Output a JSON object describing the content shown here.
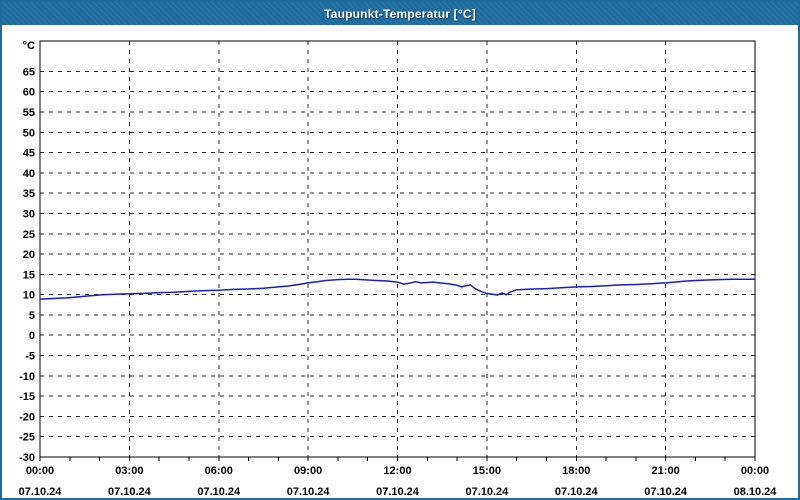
{
  "window": {
    "title": "Taupunkt-Temperatur [°C]"
  },
  "colors": {
    "titlebar": "#1E6C9F",
    "frame_border": "#1E6C9F",
    "line": "#1A1ACD",
    "grid": "#2A2A2A",
    "axis": "#000000",
    "plot_background": "#FFFFFF",
    "label_text": "#000000",
    "title_text": "#FFFFFF"
  },
  "chart_data": {
    "type": "line",
    "title": "Taupunkt-Temperatur [°C]",
    "ylabel": "°C",
    "xlabel": "",
    "grid": true,
    "legend": "none",
    "ylim": [
      -30,
      72.5
    ],
    "xlim_hours": [
      0,
      24
    ],
    "y_ticks": [
      65,
      60,
      55,
      50,
      45,
      40,
      35,
      30,
      25,
      20,
      15,
      10,
      5,
      0,
      -5,
      -10,
      -15,
      -20,
      -25,
      -30
    ],
    "x_minor_tick_hours": 1,
    "x_ticks": [
      {
        "hour": 0,
        "time": "00:00",
        "date": "07.10.24"
      },
      {
        "hour": 3,
        "time": "03:00",
        "date": "07.10.24"
      },
      {
        "hour": 6,
        "time": "06:00",
        "date": "07.10.24"
      },
      {
        "hour": 9,
        "time": "09:00",
        "date": "07.10.24"
      },
      {
        "hour": 12,
        "time": "12:00",
        "date": "07.10.24"
      },
      {
        "hour": 15,
        "time": "15:00",
        "date": "07.10.24"
      },
      {
        "hour": 18,
        "time": "18:00",
        "date": "07.10.24"
      },
      {
        "hour": 21,
        "time": "21:00",
        "date": "07.10.24"
      },
      {
        "hour": 24,
        "time": "00:00",
        "date": "08.10.24"
      }
    ],
    "series": [
      {
        "name": "Taupunkt-Temperatur",
        "color": "#1A1ACD",
        "points": [
          [
            0,
            8.9
          ],
          [
            0.3,
            9.0
          ],
          [
            0.6,
            9.1
          ],
          [
            0.9,
            9.2
          ],
          [
            1.2,
            9.4
          ],
          [
            1.5,
            9.6
          ],
          [
            1.8,
            9.8
          ],
          [
            2.1,
            10.0
          ],
          [
            2.5,
            10.1
          ],
          [
            3,
            10.2
          ],
          [
            3.5,
            10.3
          ],
          [
            4,
            10.5
          ],
          [
            4.5,
            10.6
          ],
          [
            5,
            10.8
          ],
          [
            5.5,
            11.0
          ],
          [
            6,
            11.1
          ],
          [
            6.5,
            11.3
          ],
          [
            7,
            11.4
          ],
          [
            7.5,
            11.6
          ],
          [
            8,
            11.9
          ],
          [
            8.3,
            12.1
          ],
          [
            8.6,
            12.4
          ],
          [
            9,
            12.9
          ],
          [
            9.3,
            13.2
          ],
          [
            9.6,
            13.5
          ],
          [
            10,
            13.7
          ],
          [
            10.3,
            13.8
          ],
          [
            10.6,
            13.8
          ],
          [
            11,
            13.6
          ],
          [
            11.3,
            13.5
          ],
          [
            11.6,
            13.4
          ],
          [
            12,
            13.1
          ],
          [
            12.2,
            12.6
          ],
          [
            12.4,
            12.8
          ],
          [
            12.6,
            13.2
          ],
          [
            12.8,
            12.9
          ],
          [
            13,
            13.0
          ],
          [
            13.2,
            13.1
          ],
          [
            13.4,
            12.9
          ],
          [
            13.7,
            12.7
          ],
          [
            14,
            12.3
          ],
          [
            14.15,
            11.9
          ],
          [
            14.3,
            12.2
          ],
          [
            14.45,
            12.4
          ],
          [
            14.6,
            11.5
          ],
          [
            14.8,
            10.8
          ],
          [
            15,
            10.3
          ],
          [
            15.2,
            10.1
          ],
          [
            15.35,
            9.9
          ],
          [
            15.5,
            10.4
          ],
          [
            15.65,
            10.0
          ],
          [
            15.8,
            10.7
          ],
          [
            16,
            11.2
          ],
          [
            16.3,
            11.3
          ],
          [
            16.6,
            11.4
          ],
          [
            17,
            11.5
          ],
          [
            17.5,
            11.7
          ],
          [
            18,
            11.9
          ],
          [
            18.5,
            12.0
          ],
          [
            19,
            12.2
          ],
          [
            19.5,
            12.4
          ],
          [
            20,
            12.5
          ],
          [
            20.5,
            12.7
          ],
          [
            21,
            12.9
          ],
          [
            21.3,
            13.1
          ],
          [
            21.6,
            13.3
          ],
          [
            22,
            13.5
          ],
          [
            22.4,
            13.6
          ],
          [
            22.8,
            13.7
          ],
          [
            23.2,
            13.8
          ],
          [
            23.6,
            13.8
          ],
          [
            24,
            13.8
          ]
        ]
      }
    ]
  }
}
